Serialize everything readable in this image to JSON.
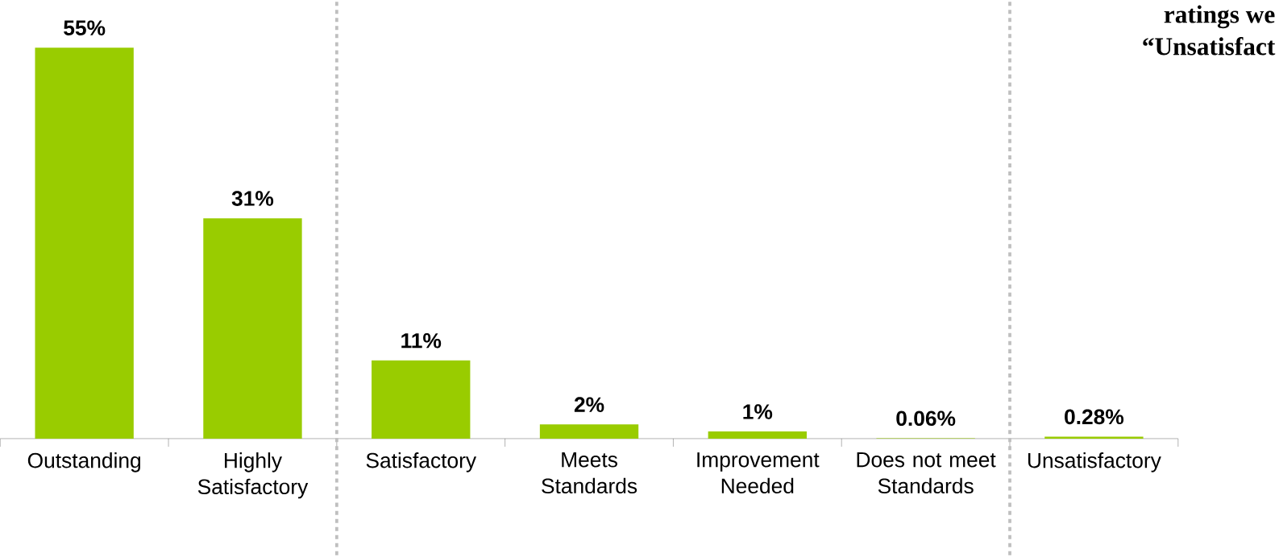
{
  "chart_data": {
    "type": "bar",
    "categories": [
      "Outstanding",
      "Highly Satisfactory",
      "Satisfactory",
      "Meets Standards",
      "Improvement Needed",
      "Does not meet Standards",
      "Unsatisfactory"
    ],
    "values": [
      55,
      31,
      11,
      2,
      1,
      0.06,
      0.28
    ],
    "value_labels": [
      "55%",
      "31%",
      "11%",
      "2%",
      "1%",
      "0.06%",
      "0.28%"
    ],
    "color": "#99cc00",
    "annotations": [
      "ratings we",
      "“Unsatisfact"
    ]
  }
}
